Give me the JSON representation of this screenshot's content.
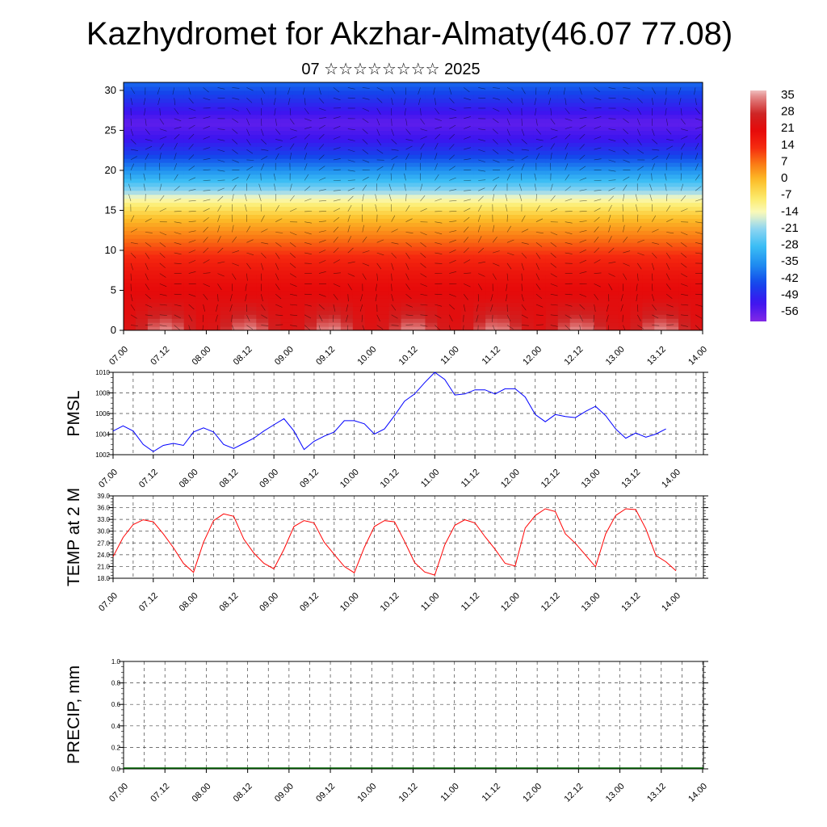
{
  "header": {
    "title": "Kazhydromet for Akzhar-Almaty(46.07 77.08)",
    "subtitle": "07 ☆☆☆☆☆☆☆☆ 2025"
  },
  "chart_data": [
    {
      "type": "heatmap",
      "title": "",
      "x_tick_labels": [
        "07.00",
        "07.12",
        "08.00",
        "08.12",
        "09.00",
        "09.12",
        "10.00",
        "10.12",
        "11.00",
        "11.12",
        "12.00",
        "12.12",
        "13.00",
        "13.12",
        "14.00"
      ],
      "y_ticks": [
        0,
        5,
        10,
        15,
        20,
        25,
        30
      ],
      "ylim": [
        0,
        31
      ],
      "colorbar": {
        "labels": [
          "35",
          "28",
          "21",
          "14",
          "7",
          "0",
          "-7",
          "-14",
          "-21",
          "-28",
          "-35",
          "-42",
          "-49",
          "-56"
        ],
        "min": -60,
        "max": 38
      },
      "profile_levels": [
        0,
        2,
        4,
        6,
        8,
        10,
        12,
        14,
        16,
        18,
        20,
        22,
        24,
        26,
        28,
        31
      ],
      "profile_values": [
        30,
        25,
        22,
        20,
        17,
        12,
        6,
        0,
        -10,
        -24,
        -35,
        -45,
        -52,
        -56,
        -50,
        -40
      ],
      "overlay": "wind barbs"
    },
    {
      "type": "line",
      "ylabel": "PMSL",
      "x_tick_labels": [
        "07.00",
        "07.12",
        "08.00",
        "08.12",
        "09.00",
        "09.12",
        "10.00",
        "10.12",
        "11.00",
        "11.12",
        "12.00",
        "12.12",
        "13.00",
        "13.12",
        "14.00"
      ],
      "ylim": [
        1002,
        1010
      ],
      "y_tick_labels": [
        "1002",
        "1004",
        "1006",
        "1008",
        "1010"
      ],
      "grid": true,
      "series": [
        {
          "color": "#0000ff",
          "values": [
            1004.3,
            1004.8,
            1004.3,
            1003.0,
            1002.3,
            1002.9,
            1003.1,
            1002.9,
            1004.2,
            1004.6,
            1004.2,
            1003.0,
            1002.6,
            1003.1,
            1003.6,
            1004.3,
            1004.9,
            1005.5,
            1004.3,
            1002.5,
            1003.3,
            1003.8,
            1004.2,
            1005.3,
            1005.3,
            1005.0,
            1004.0,
            1004.5,
            1005.8,
            1007.2,
            1007.9,
            1009.0,
            1010.0,
            1009.3,
            1007.8,
            1007.9,
            1008.3,
            1008.3,
            1007.9,
            1008.4,
            1008.4,
            1007.6,
            1005.9,
            1005.2,
            1005.9,
            1005.7,
            1005.6,
            1006.2,
            1006.7,
            1005.8,
            1004.5,
            1003.6,
            1004.1,
            1003.7,
            1004.0,
            1004.5
          ]
        }
      ]
    },
    {
      "type": "line",
      "ylabel": "TEMP at 2 M",
      "x_tick_labels": [
        "07.00",
        "07.12",
        "08.00",
        "08.12",
        "09.00",
        "09.12",
        "10.00",
        "10.12",
        "11.00",
        "11.12",
        "12.00",
        "12.12",
        "13.00",
        "13.12",
        "14.00"
      ],
      "ylim": [
        18,
        39
      ],
      "y_tick_labels": [
        "18.0",
        "21.0",
        "24.0",
        "27.0",
        "30.0",
        "33.0",
        "36.0",
        "39.0"
      ],
      "grid": true,
      "series": [
        {
          "color": "#ff0000",
          "values": [
            23.5,
            28.4,
            31.7,
            32.9,
            32.4,
            29.3,
            25.8,
            21.8,
            19.5,
            27.2,
            32.7,
            34.4,
            33.8,
            28.0,
            24.4,
            21.8,
            20.4,
            25.4,
            31.2,
            32.7,
            32.1,
            27.2,
            24.1,
            21.0,
            19.4,
            25.9,
            31.2,
            32.7,
            32.4,
            27.4,
            22.0,
            19.6,
            18.8,
            26.5,
            31.5,
            32.9,
            32.1,
            28.6,
            25.4,
            21.8,
            21.1,
            30.8,
            34.0,
            35.7,
            35.0,
            29.3,
            26.9,
            23.9,
            20.9,
            29.3,
            34.0,
            35.7,
            35.5,
            30.6,
            23.8,
            22.2,
            19.9
          ]
        }
      ]
    },
    {
      "type": "line",
      "ylabel": "PRECIP, mm",
      "x_tick_labels": [
        "07.00",
        "07.12",
        "08.00",
        "08.12",
        "09.00",
        "09.12",
        "10.00",
        "10.12",
        "11.00",
        "11.12",
        "12.00",
        "12.12",
        "13.00",
        "13.12",
        "14.00"
      ],
      "ylim": [
        0,
        1
      ],
      "y_tick_labels": [
        "0.0",
        "0.2",
        "0.4",
        "0.6",
        "0.8",
        "1.0"
      ],
      "grid": true,
      "series": [
        {
          "color": "#0000ff",
          "values": []
        }
      ]
    }
  ]
}
